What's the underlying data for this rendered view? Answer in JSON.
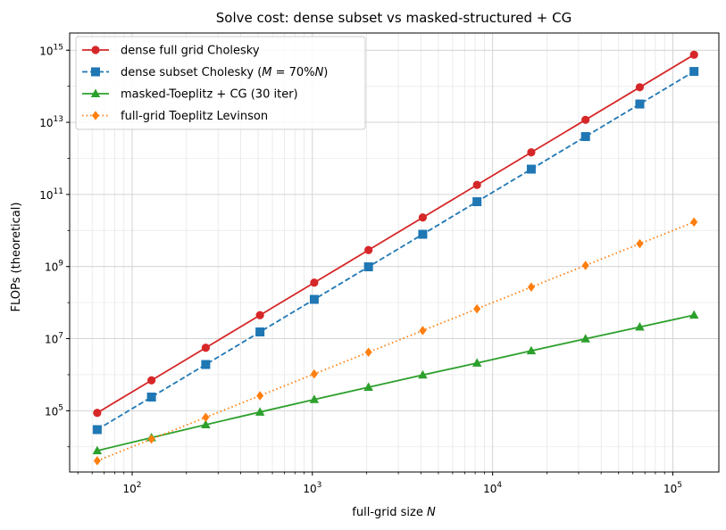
{
  "chart_data": {
    "type": "line",
    "title": "Solve cost: dense subset vs masked-structured + CG",
    "xlabel": "full-grid size N",
    "ylabel": "FLOPs (theoretical)",
    "xscale": "log",
    "yscale": "log",
    "xlim": [
      45,
      180000
    ],
    "ylim": [
      2000,
      3000000000000000
    ],
    "grid": true,
    "legend_position": "top-left",
    "x_ticks": [
      {
        "value": 100,
        "base": "10",
        "exp": "2"
      },
      {
        "value": 1000,
        "base": "10",
        "exp": "3"
      },
      {
        "value": 10000,
        "base": "10",
        "exp": "4"
      },
      {
        "value": 100000,
        "base": "10",
        "exp": "5"
      }
    ],
    "y_ticks": [
      {
        "value": 100000,
        "base": "10",
        "exp": "5"
      },
      {
        "value": 10000000,
        "base": "10",
        "exp": "7"
      },
      {
        "value": 1000000000,
        "base": "10",
        "exp": "9"
      },
      {
        "value": 100000000000,
        "base": "10",
        "exp": "11"
      },
      {
        "value": 10000000000000,
        "base": "10",
        "exp": "13"
      },
      {
        "value": 1000000000000000,
        "base": "10",
        "exp": "15"
      }
    ],
    "x": [
      64,
      128,
      256,
      512,
      1024,
      2048,
      4096,
      8192,
      16384,
      32768,
      65536,
      131072
    ],
    "series": [
      {
        "name": "dense full grid Cholesky",
        "color": "#d62728",
        "marker": "circle",
        "dash": "solid",
        "values": [
          87381,
          699051,
          5592405,
          44739243,
          357913941,
          2863311531,
          22906492245,
          183251937963,
          1466015503701,
          11728124029611,
          93824992236885,
          750599937895083
        ]
      },
      {
        "name": "dense subset Cholesky (M = 70%N)",
        "color": "#1f77b4",
        "marker": "square",
        "dash": "dashed",
        "values": [
          29970,
          239760,
          1918080,
          15344640,
          122757120,
          982056960,
          7856455680,
          62851645440,
          502813163520,
          4022505308160,
          32180042465280,
          257440339722240
        ]
      },
      {
        "name": "masked-Toeplitz + CG (30 iter)",
        "color": "#2ca02c",
        "marker": "triangle",
        "dash": "solid",
        "values": [
          7800,
          18000,
          41000,
          92000,
          205000,
          450000,
          980000,
          2100000,
          4600000,
          9900000,
          21000000,
          45000000
        ]
      },
      {
        "name": "full-grid Toeplitz Levinson",
        "color": "#ff7f0e",
        "marker": "diamond",
        "dash": "dotted",
        "values": [
          4096,
          16384,
          65536,
          262144,
          1048576,
          4194304,
          16777216,
          67108864,
          268435456,
          1073741824,
          4294967296,
          17179869184
        ]
      }
    ]
  }
}
